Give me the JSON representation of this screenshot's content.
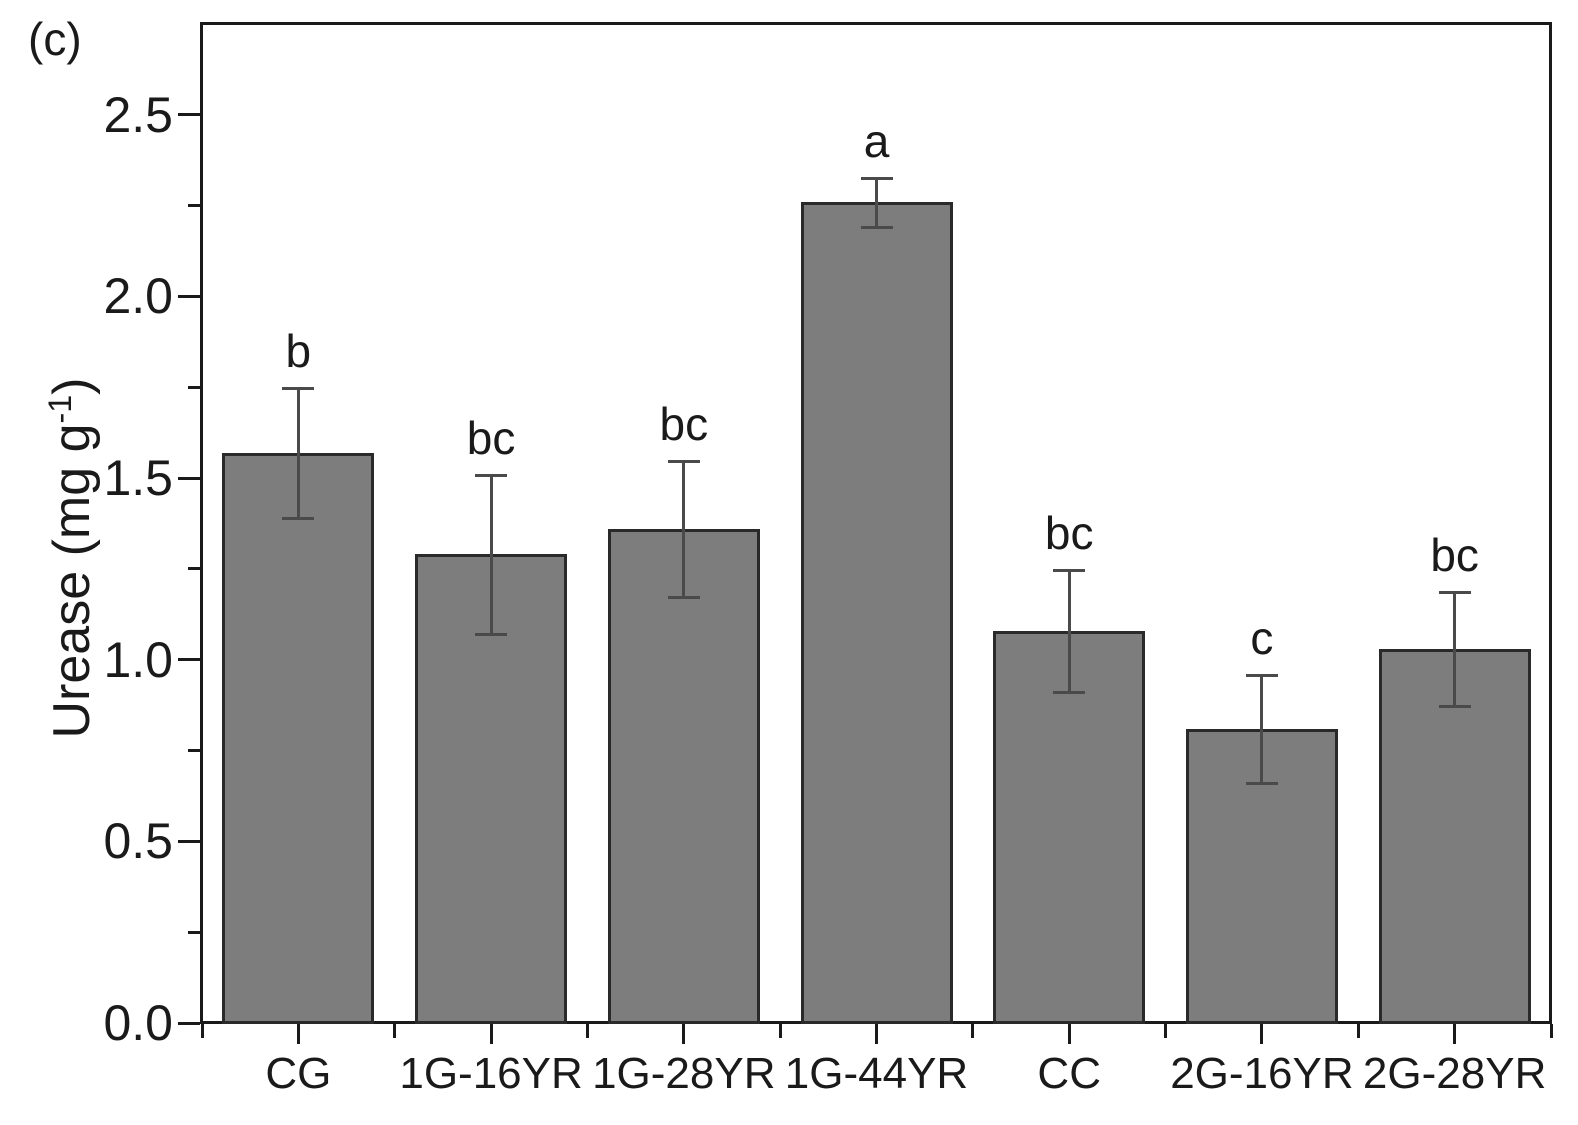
{
  "chart_data": {
    "type": "bar",
    "panel_label": "(c)",
    "ylabel_main": "Urease (mg g",
    "ylabel_sup": "-1",
    "ylabel_close": ")",
    "xlabel": "",
    "categories": [
      "CG",
      "1G-16YR",
      "1G-28YR",
      "1G-44YR",
      "CC",
      "2G-16YR",
      "2G-28YR"
    ],
    "values": [
      1.57,
      1.29,
      1.36,
      2.26,
      1.08,
      0.81,
      1.03
    ],
    "errors": [
      0.18,
      0.22,
      0.19,
      0.07,
      0.17,
      0.15,
      0.16
    ],
    "sig_letters": [
      "b",
      "bc",
      "bc",
      "a",
      "bc",
      "c",
      "bc"
    ],
    "ytick_labels": [
      "0.0",
      "0.5",
      "1.0",
      "1.5",
      "2.0",
      "2.5"
    ],
    "ytick_values": [
      0,
      0.5,
      1.0,
      1.5,
      2.0,
      2.5
    ],
    "minor_tick_step": 0.25,
    "ylim": [
      0,
      2.75
    ],
    "grid": false,
    "legend": null,
    "colors": {
      "bar_fill": "#7d7d7d",
      "bar_border": "#2a2a2a",
      "error": "#4a4a4a",
      "axis": "#1a1a1a",
      "text": "#1a1a1a",
      "background": "#ffffff"
    }
  }
}
